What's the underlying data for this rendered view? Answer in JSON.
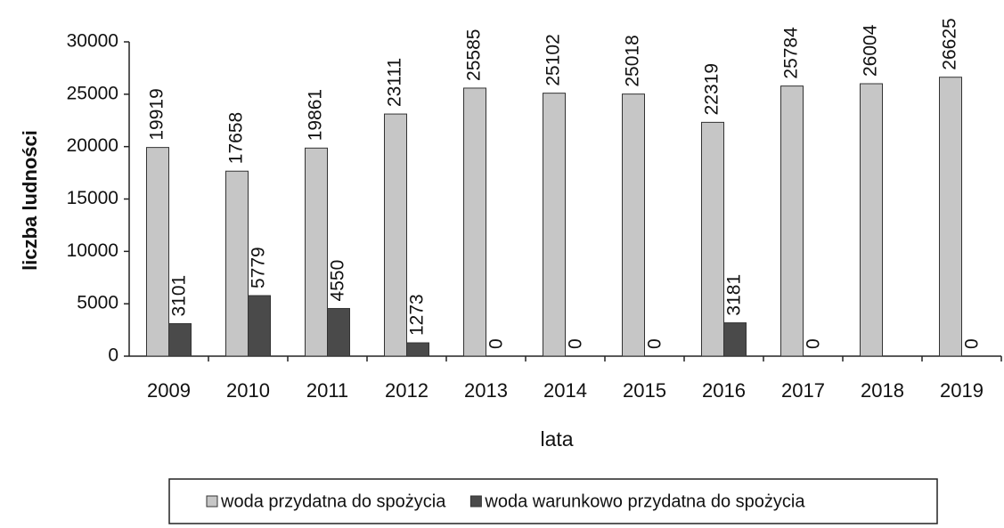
{
  "chart_data": {
    "type": "bar",
    "y_label": "liczba ludności",
    "x_label": "lata",
    "categories": [
      "2009",
      "2010",
      "2011",
      "2012",
      "2013",
      "2014",
      "2015",
      "2016",
      "2017",
      "2018",
      "2019"
    ],
    "series": [
      {
        "name": "woda przydatna do spożycia",
        "color": "#c6c6c6",
        "values": [
          19919,
          17658,
          19861,
          23111,
          25585,
          25102,
          25018,
          22319,
          25784,
          26004,
          26625
        ]
      },
      {
        "name": "woda warunkowo przydatna do spożycia",
        "color": "#4a4a4a",
        "values": [
          3101,
          5779,
          4550,
          1273,
          0,
          0,
          0,
          3181,
          0,
          null,
          0
        ]
      }
    ],
    "ylim": [
      0,
      30000
    ],
    "yticks": [
      0,
      5000,
      10000,
      15000,
      20000,
      25000,
      30000
    ],
    "grid": false,
    "legend": "bottom"
  }
}
